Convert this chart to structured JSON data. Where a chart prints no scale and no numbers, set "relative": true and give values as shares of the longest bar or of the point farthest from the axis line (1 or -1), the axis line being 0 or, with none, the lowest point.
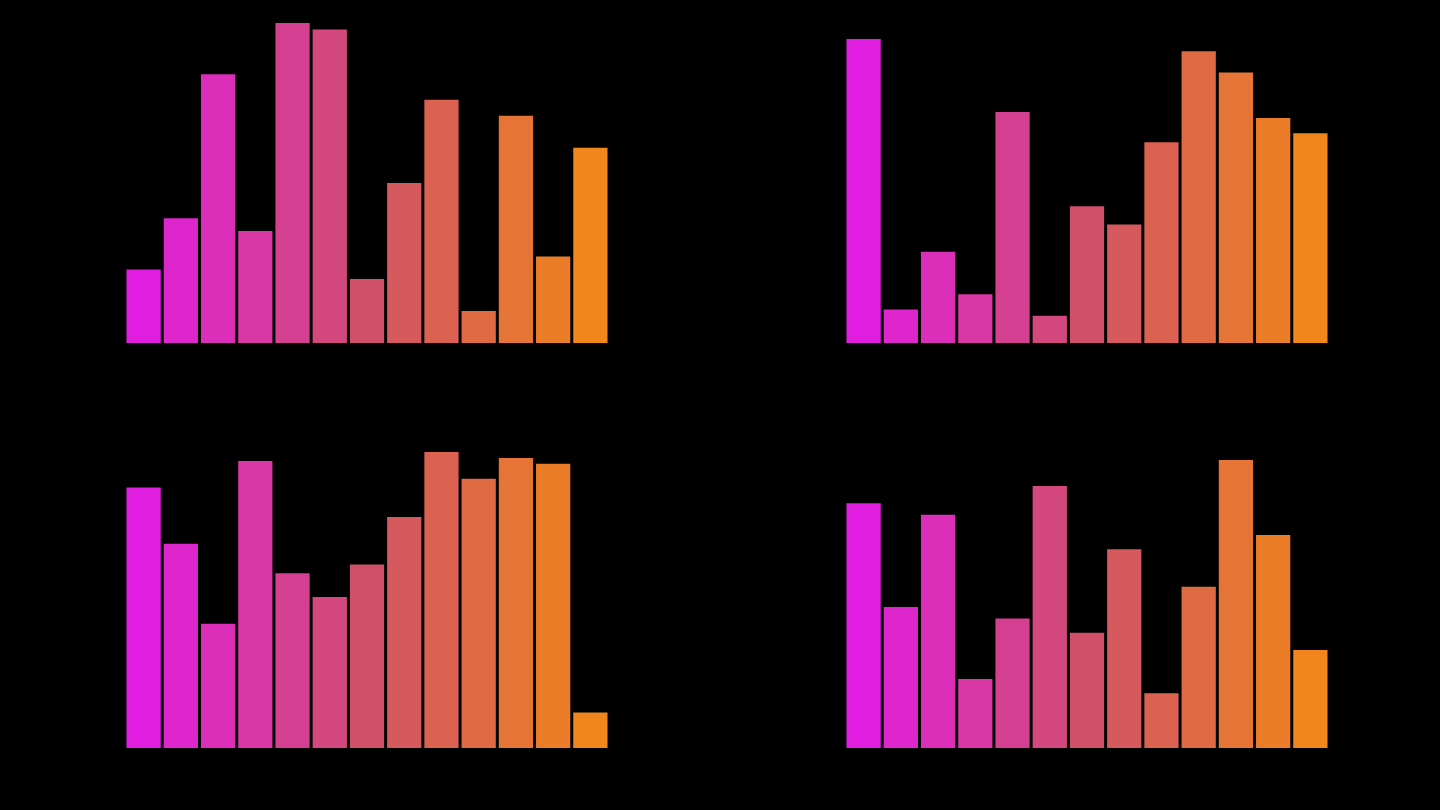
{
  "chart_data": [
    {
      "type": "bar",
      "relative": true,
      "categories": [
        null,
        null,
        null,
        null,
        null,
        null,
        null,
        null,
        null,
        null,
        null,
        null,
        null
      ],
      "values": [
        0.23,
        0.39,
        0.84,
        0.35,
        1,
        0.98,
        0.2,
        0.5,
        0.76,
        0.1,
        0.71,
        0.27,
        0.61
      ],
      "colors": [
        "#e01ee0",
        "#dd26cc",
        "#db2fb9",
        "#d837a5",
        "#d53f91",
        "#d3487e",
        "#d0506a",
        "#d5595d",
        "#db6250",
        "#e06b43",
        "#e57436",
        "#eb7d29",
        "#f0861c"
      ]
    },
    {
      "type": "bar",
      "relative": true,
      "categories": [
        null,
        null,
        null,
        null,
        null,
        null,
        null,
        null,
        null,
        null,
        null,
        null,
        null
      ],
      "values": [
        1,
        0.11,
        0.3,
        0.16,
        0.76,
        0.09,
        0.45,
        0.39,
        0.66,
        0.96,
        0.89,
        0.74,
        0.69
      ],
      "colors": [
        "#e01ee0",
        "#dd26cc",
        "#db2fb9",
        "#d837a5",
        "#d53f91",
        "#d3487e",
        "#d0506a",
        "#d5595d",
        "#db6250",
        "#e06b43",
        "#e57436",
        "#eb7d29",
        "#f0861c"
      ]
    },
    {
      "type": "bar",
      "relative": true,
      "categories": [
        null,
        null,
        null,
        null,
        null,
        null,
        null,
        null,
        null,
        null,
        null,
        null,
        null
      ],
      "values": [
        0.88,
        0.69,
        0.42,
        0.97,
        0.59,
        0.51,
        0.62,
        0.78,
        1,
        0.91,
        0.98,
        0.96,
        0.12
      ],
      "colors": [
        "#e01ee0",
        "#dd26cc",
        "#db2fb9",
        "#d837a5",
        "#d53f91",
        "#d3487e",
        "#d0506a",
        "#d5595d",
        "#db6250",
        "#e06b43",
        "#e57436",
        "#eb7d29",
        "#f0861c"
      ]
    },
    {
      "type": "bar",
      "relative": true,
      "categories": [
        null,
        null,
        null,
        null,
        null,
        null,
        null,
        null,
        null,
        null,
        null,
        null,
        null
      ],
      "values": [
        0.85,
        0.49,
        0.81,
        0.24,
        0.45,
        0.91,
        0.4,
        0.69,
        0.19,
        0.56,
        1,
        0.74,
        0.34
      ],
      "colors": [
        "#e01ee0",
        "#dd26cc",
        "#db2fb9",
        "#d837a5",
        "#d53f91",
        "#d3487e",
        "#d0506a",
        "#d5595d",
        "#db6250",
        "#e06b43",
        "#e57436",
        "#eb7d29",
        "#f0861c"
      ]
    }
  ]
}
